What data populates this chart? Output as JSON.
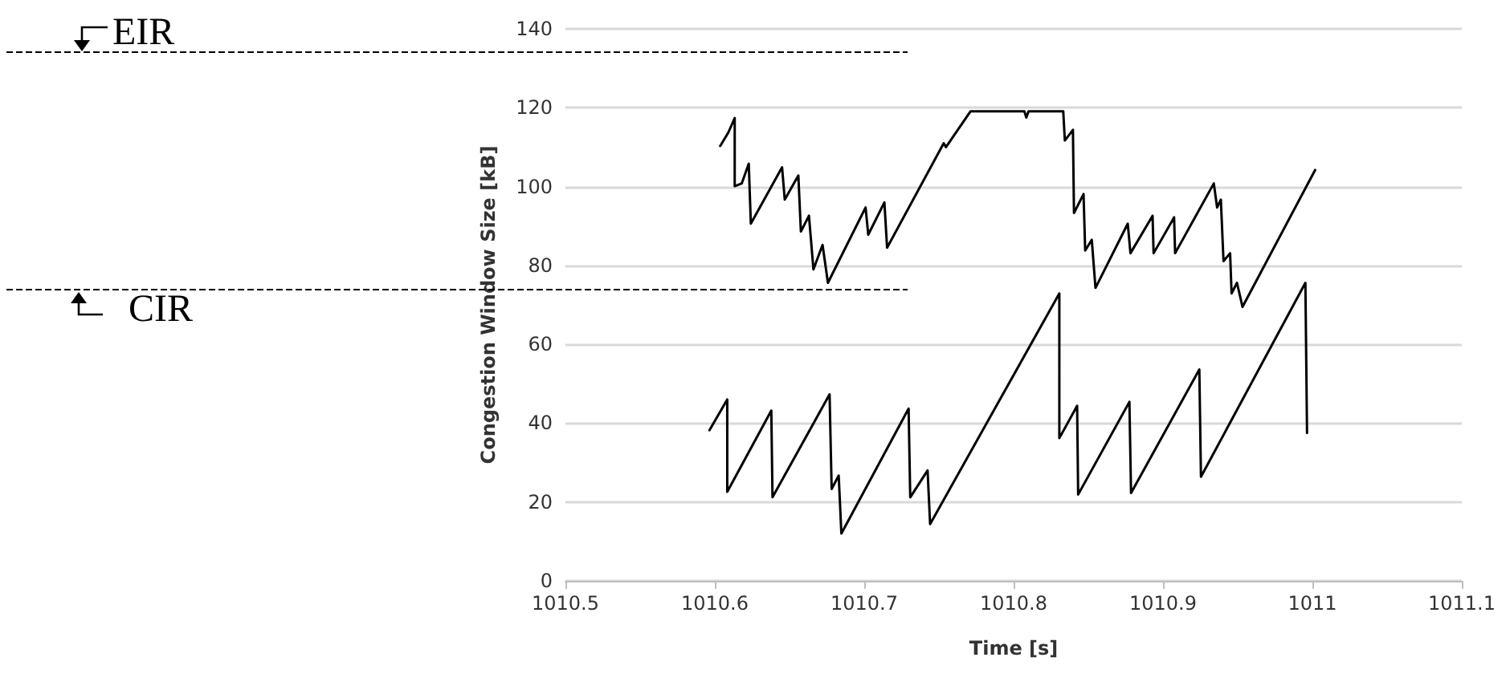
{
  "chart_data": {
    "type": "line",
    "xlabel": "Time [s]",
    "ylabel": "Congestion Window Size [kB]",
    "xlim": [
      1010.5,
      1011.1
    ],
    "xticks": [
      1010.5,
      1010.6,
      1010.7,
      1010.8,
      1010.9,
      1011,
      1011.1
    ],
    "ylim": [
      0,
      140
    ],
    "yticks": [
      0,
      20,
      40,
      60,
      80,
      100,
      120,
      140
    ],
    "grid": "y",
    "marker": "none",
    "line_style": "solid",
    "series": [
      {
        "color": "#000000",
        "x": [
          1010.6036,
          1010.609,
          1010.6133,
          1010.6133,
          1010.618,
          1010.6227,
          1010.6241,
          1010.645,
          1010.6468,
          1010.6559,
          1010.6576,
          1010.663,
          1010.666,
          1010.6721,
          1010.6757,
          1010.7009,
          1010.7027,
          1010.7135,
          1010.7153,
          1010.7532,
          1010.7547,
          1010.7712,
          1010.8072,
          1010.8085,
          1010.81,
          1010.8332,
          1010.8343,
          1010.8397,
          1010.8404,
          1010.8468,
          1010.8479,
          1010.8523,
          1010.8548,
          1010.8764,
          1010.8782,
          1010.893,
          1010.8937,
          1010.9074,
          1010.9081,
          1010.934,
          1010.9362,
          1010.9387,
          1010.9405,
          1010.9449,
          1010.9459,
          1010.9495,
          1010.9532,
          1011.0018
        ],
        "values": [
          110.3,
          113.7,
          117.4,
          100.1,
          100.8,
          105.8,
          90.6,
          104.9,
          96.7,
          102.8,
          88.6,
          92.6,
          79,
          85.2,
          75.6,
          94.7,
          87.8,
          96,
          84.5,
          111,
          110,
          119.1,
          119.1,
          117.5,
          119.1,
          119.1,
          111.7,
          114.4,
          93.3,
          98.1,
          83.8,
          86.5,
          74.3,
          90.6,
          83.1,
          92.6,
          83.1,
          92.2,
          83.1,
          100.8,
          94.7,
          96.7,
          81.1,
          83.1,
          72.9,
          75.6,
          69.5,
          104.2
        ]
      },
      {
        "color": "#000000",
        "x": [
          1010.5964,
          1010.6083,
          1010.6083,
          1010.6378,
          1010.6386,
          1010.6768,
          1010.6782,
          1010.6829,
          1010.6847,
          1010.7297,
          1010.7308,
          1010.7424,
          1010.7441,
          1010.8306,
          1010.8306,
          1010.8425,
          1010.8432,
          1010.8775,
          1010.8786,
          1010.9243,
          1010.9254,
          1010.9953,
          1010.9964
        ],
        "values": [
          38.2,
          46,
          22.6,
          43.2,
          21.2,
          47.3,
          23.3,
          26.7,
          12,
          43.7,
          21.2,
          28,
          14.4,
          72.9,
          36.2,
          44.4,
          21.9,
          45.4,
          22.3,
          53.6,
          26.4,
          75.6,
          37.5
        ]
      }
    ],
    "ref_lines": [
      {
        "axis": "y",
        "value": 134,
        "label": "EIR",
        "color": "#000000",
        "line_style": "dashed"
      },
      {
        "axis": "y",
        "value": 74,
        "label": "CIR",
        "color": "#000000",
        "line_style": "dashed"
      }
    ]
  }
}
